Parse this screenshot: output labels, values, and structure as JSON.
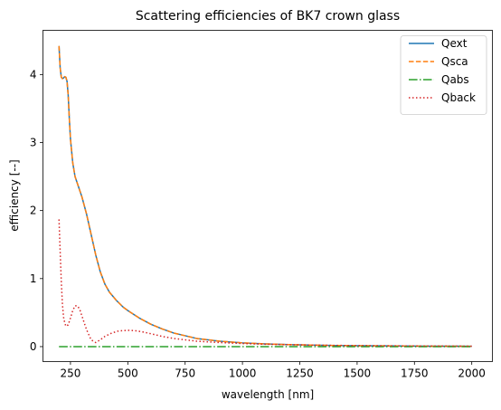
{
  "chart_data": {
    "type": "line",
    "title": "Scattering efficiencies of BK7 crown glass",
    "xlabel": "wavelength [nm]",
    "ylabel": "efficiency [--]",
    "xlim": [
      130,
      2090
    ],
    "ylim": [
      -0.22,
      4.65
    ],
    "xticks": [
      250,
      500,
      750,
      1000,
      1250,
      1500,
      1750,
      2000
    ],
    "yticks": [
      0,
      1,
      2,
      3,
      4
    ],
    "grid": false,
    "legend_position": "top-right",
    "series": [
      {
        "name": "Qext",
        "color": "#1f77b4",
        "style": "solid",
        "x": [
          200,
          205,
          210,
          215,
          220,
          225,
          230,
          235,
          240,
          245,
          250,
          260,
          270,
          280,
          300,
          320,
          340,
          360,
          380,
          400,
          420,
          450,
          480,
          500,
          550,
          600,
          650,
          700,
          800,
          900,
          1000,
          1100,
          1200,
          1300,
          1400,
          1500,
          1600,
          1700,
          1800,
          1900,
          2000
        ],
        "values": [
          4.42,
          4.1,
          3.96,
          3.94,
          3.95,
          3.97,
          3.96,
          3.9,
          3.7,
          3.35,
          3.05,
          2.7,
          2.5,
          2.4,
          2.2,
          1.95,
          1.65,
          1.35,
          1.1,
          0.92,
          0.8,
          0.68,
          0.58,
          0.53,
          0.42,
          0.33,
          0.26,
          0.2,
          0.12,
          0.08,
          0.055,
          0.04,
          0.03,
          0.022,
          0.017,
          0.013,
          0.011,
          0.009,
          0.007,
          0.006,
          0.005
        ]
      },
      {
        "name": "Qsca",
        "color": "#ff7f0e",
        "style": "dashed",
        "x": [
          200,
          205,
          210,
          215,
          220,
          225,
          230,
          235,
          240,
          245,
          250,
          260,
          270,
          280,
          300,
          320,
          340,
          360,
          380,
          400,
          420,
          450,
          480,
          500,
          550,
          600,
          650,
          700,
          800,
          900,
          1000,
          1100,
          1200,
          1300,
          1400,
          1500,
          1600,
          1700,
          1800,
          1900,
          2000
        ],
        "values": [
          4.42,
          4.1,
          3.96,
          3.94,
          3.95,
          3.97,
          3.96,
          3.9,
          3.7,
          3.35,
          3.05,
          2.7,
          2.5,
          2.4,
          2.2,
          1.95,
          1.65,
          1.35,
          1.1,
          0.92,
          0.8,
          0.68,
          0.58,
          0.53,
          0.42,
          0.33,
          0.26,
          0.2,
          0.12,
          0.08,
          0.055,
          0.04,
          0.03,
          0.022,
          0.017,
          0.013,
          0.011,
          0.009,
          0.007,
          0.006,
          0.005
        ]
      },
      {
        "name": "Qabs",
        "color": "#2ca02c",
        "style": "dashdot",
        "x": [
          200,
          2000
        ],
        "values": [
          0.0,
          0.0
        ]
      },
      {
        "name": "Qback",
        "color": "#d62728",
        "style": "dotted",
        "x": [
          200,
          205,
          210,
          215,
          220,
          225,
          230,
          240,
          250,
          260,
          270,
          280,
          290,
          300,
          320,
          340,
          360,
          380,
          400,
          430,
          460,
          500,
          530,
          560,
          600,
          650,
          700,
          800,
          900,
          1000,
          1100,
          1200,
          1300,
          1400,
          1600,
          1800,
          2000
        ],
        "values": [
          1.87,
          1.4,
          0.95,
          0.62,
          0.43,
          0.35,
          0.3,
          0.32,
          0.42,
          0.53,
          0.6,
          0.6,
          0.55,
          0.45,
          0.25,
          0.1,
          0.06,
          0.1,
          0.15,
          0.2,
          0.23,
          0.24,
          0.235,
          0.22,
          0.19,
          0.15,
          0.12,
          0.08,
          0.06,
          0.045,
          0.035,
          0.028,
          0.022,
          0.018,
          0.012,
          0.008,
          0.006
        ]
      }
    ]
  }
}
